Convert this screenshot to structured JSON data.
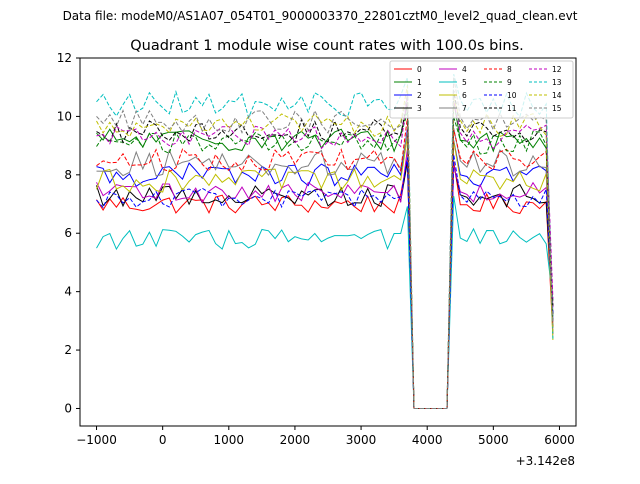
{
  "figure": {
    "suptitle": "Data file: modeM0/AS1A07_054T01_9000003370_22801cztM0_level2_quad_clean.evt",
    "title": "Quadrant 1 module wise count rates with 100.0s bins.",
    "x_offset_label": "+3.142e8"
  },
  "chart_data": {
    "type": "line",
    "title": "Quadrant 1 module wise count rates with 100.0s bins.",
    "xlabel": "",
    "ylabel": "",
    "x_offset": 314200000,
    "xlim": [
      -1250,
      6250
    ],
    "ylim": [
      -0.6,
      12
    ],
    "xticks": [
      -1000,
      0,
      1000,
      2000,
      3000,
      4000,
      5000,
      6000
    ],
    "xtick_labels": [
      "−1000",
      "0",
      "1000",
      "2000",
      "3000",
      "4000",
      "5000",
      "6000"
    ],
    "yticks": [
      0,
      2,
      4,
      6,
      8,
      10,
      12
    ],
    "ytick_labels": [
      "0",
      "2",
      "4",
      "6",
      "8",
      "10",
      "12"
    ],
    "grid": false,
    "legend_position": "top-right",
    "legend_columns": 4,
    "gaps": [
      {
        "start": 3800,
        "end": 4400,
        "value": 0
      }
    ],
    "series": [
      {
        "name": "0",
        "color": "#ff0000",
        "dash": "solid",
        "level": 7.0,
        "amp": 0.35
      },
      {
        "name": "1",
        "color": "#008000",
        "dash": "solid",
        "level": 9.2,
        "amp": 0.4
      },
      {
        "name": "2",
        "color": "#0000ff",
        "dash": "solid",
        "level": 8.0,
        "amp": 0.4
      },
      {
        "name": "3",
        "color": "#000000",
        "dash": "solid",
        "level": 7.3,
        "amp": 0.4
      },
      {
        "name": "4",
        "color": "#bf00bf",
        "dash": "solid",
        "level": 7.4,
        "amp": 0.35
      },
      {
        "name": "5",
        "color": "#00bfbf",
        "dash": "solid",
        "level": 5.8,
        "amp": 0.35
      },
      {
        "name": "6",
        "color": "#bfbf00",
        "dash": "solid",
        "level": 7.8,
        "amp": 0.4
      },
      {
        "name": "7",
        "color": "#808080",
        "dash": "solid",
        "level": 8.4,
        "amp": 0.45
      },
      {
        "name": "8",
        "color": "#ff0000",
        "dash": "dashed",
        "level": 8.5,
        "amp": 0.4
      },
      {
        "name": "9",
        "color": "#008000",
        "dash": "dashed",
        "level": 9.1,
        "amp": 0.4
      },
      {
        "name": "10",
        "color": "#0000ff",
        "dash": "dashed",
        "level": 7.2,
        "amp": 0.35
      },
      {
        "name": "11",
        "color": "#000000",
        "dash": "dashed",
        "level": 9.5,
        "amp": 0.4
      },
      {
        "name": "12",
        "color": "#bf00bf",
        "dash": "dashed",
        "level": 9.3,
        "amp": 0.4
      },
      {
        "name": "13",
        "color": "#00bfbf",
        "dash": "dashed",
        "level": 10.4,
        "amp": 0.45
      },
      {
        "name": "14",
        "color": "#bfbf00",
        "dash": "dashed",
        "level": 9.7,
        "amp": 0.4
      },
      {
        "name": "15",
        "color": "#808080",
        "dash": "dashed",
        "level": 9.8,
        "amp": 0.4
      }
    ]
  }
}
